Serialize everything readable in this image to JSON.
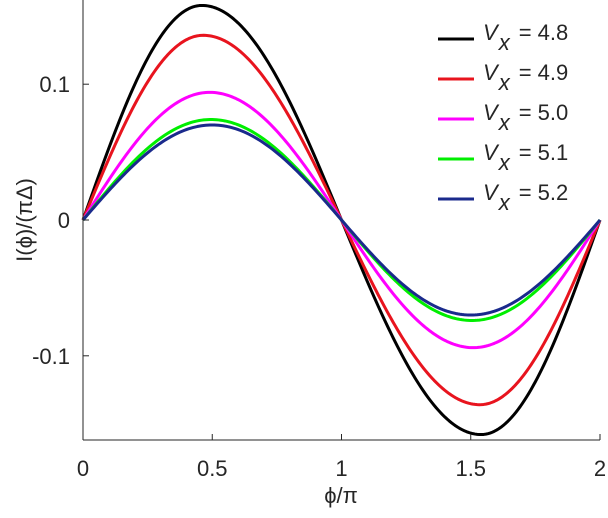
{
  "chart_data": {
    "type": "line",
    "xlabel": "ϕ/π",
    "ylabel": "I(ϕ)/(πΔ)",
    "xlim": [
      0,
      2
    ],
    "ylim": [
      -0.162,
      0.162
    ],
    "x_ticks": [
      0,
      0.5,
      1,
      1.5,
      2
    ],
    "x_tick_labels": [
      "0",
      "0.5",
      "1",
      "1.5",
      "2"
    ],
    "y_ticks": [
      -0.1,
      0,
      0.1
    ],
    "y_tick_labels": [
      "-0.1",
      "0",
      "0.1"
    ],
    "grid": false,
    "legend_position": "top-right",
    "legend_symbol": "V",
    "legend_subscript": "x",
    "series": [
      {
        "name": "V_x = 4.8",
        "value_label": "= 4.8",
        "color": "#000000",
        "amplitude": 0.158,
        "peak_x": 0.46
      },
      {
        "name": "V_x = 4.9",
        "value_label": "= 4.9",
        "color": "#e8141e",
        "amplitude": 0.136,
        "peak_x": 0.465
      },
      {
        "name": "V_x = 5.0",
        "value_label": "= 5.0",
        "color": "#ff00ff",
        "amplitude": 0.094,
        "peak_x": 0.49
      },
      {
        "name": "V_x = 5.1",
        "value_label": "= 5.1",
        "color": "#00ee00",
        "amplitude": 0.074,
        "peak_x": 0.495
      },
      {
        "name": "V_x = 5.2",
        "value_label": "= 5.2",
        "color": "#1a2a8c",
        "amplitude": 0.07,
        "peak_x": 0.5
      }
    ]
  }
}
